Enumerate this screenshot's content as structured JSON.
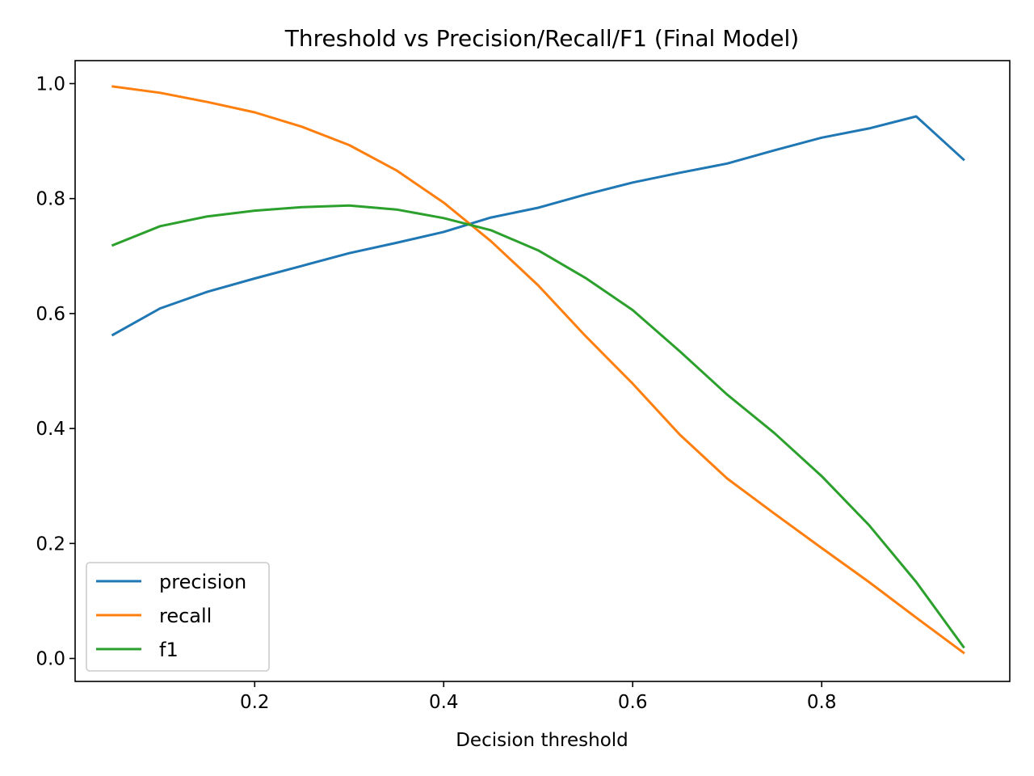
{
  "chart_data": {
    "type": "line",
    "title": "Threshold vs Precision/Recall/F1 (Final Model)",
    "xlabel": "Decision threshold",
    "ylabel": "",
    "xlim": [
      0.01,
      0.999
    ],
    "ylim": [
      -0.04,
      1.04
    ],
    "x": [
      0.05,
      0.1,
      0.15,
      0.2,
      0.25,
      0.3,
      0.35,
      0.4,
      0.45,
      0.5,
      0.55,
      0.6,
      0.65,
      0.7,
      0.75,
      0.8,
      0.85,
      0.9,
      0.95
    ],
    "xticks": [
      0.2,
      0.4,
      0.6,
      0.8
    ],
    "xtick_labels": [
      "0.2",
      "0.4",
      "0.6",
      "0.8"
    ],
    "yticks": [
      0.0,
      0.2,
      0.4,
      0.6,
      0.8,
      1.0
    ],
    "ytick_labels": [
      "0.0",
      "0.2",
      "0.4",
      "0.6",
      "0.8",
      "1.0"
    ],
    "grid": false,
    "legend_position": "lower-left",
    "series": [
      {
        "name": "precision",
        "color": "#1f77b4",
        "values": [
          0.563,
          0.609,
          0.638,
          0.661,
          0.683,
          0.705,
          0.723,
          0.742,
          0.767,
          0.784,
          0.807,
          0.828,
          0.845,
          0.861,
          0.884,
          0.906,
          0.922,
          0.943,
          0.868
        ]
      },
      {
        "name": "recall",
        "color": "#ff7f0e",
        "values": [
          0.995,
          0.984,
          0.968,
          0.95,
          0.925,
          0.893,
          0.849,
          0.793,
          0.726,
          0.649,
          0.561,
          0.478,
          0.389,
          0.313,
          0.252,
          0.192,
          0.133,
          0.071,
          0.01
        ]
      },
      {
        "name": "f1",
        "color": "#2ca02c",
        "values": [
          0.719,
          0.752,
          0.769,
          0.779,
          0.785,
          0.788,
          0.781,
          0.766,
          0.745,
          0.71,
          0.662,
          0.606,
          0.534,
          0.459,
          0.392,
          0.317,
          0.232,
          0.133,
          0.02
        ]
      }
    ]
  }
}
